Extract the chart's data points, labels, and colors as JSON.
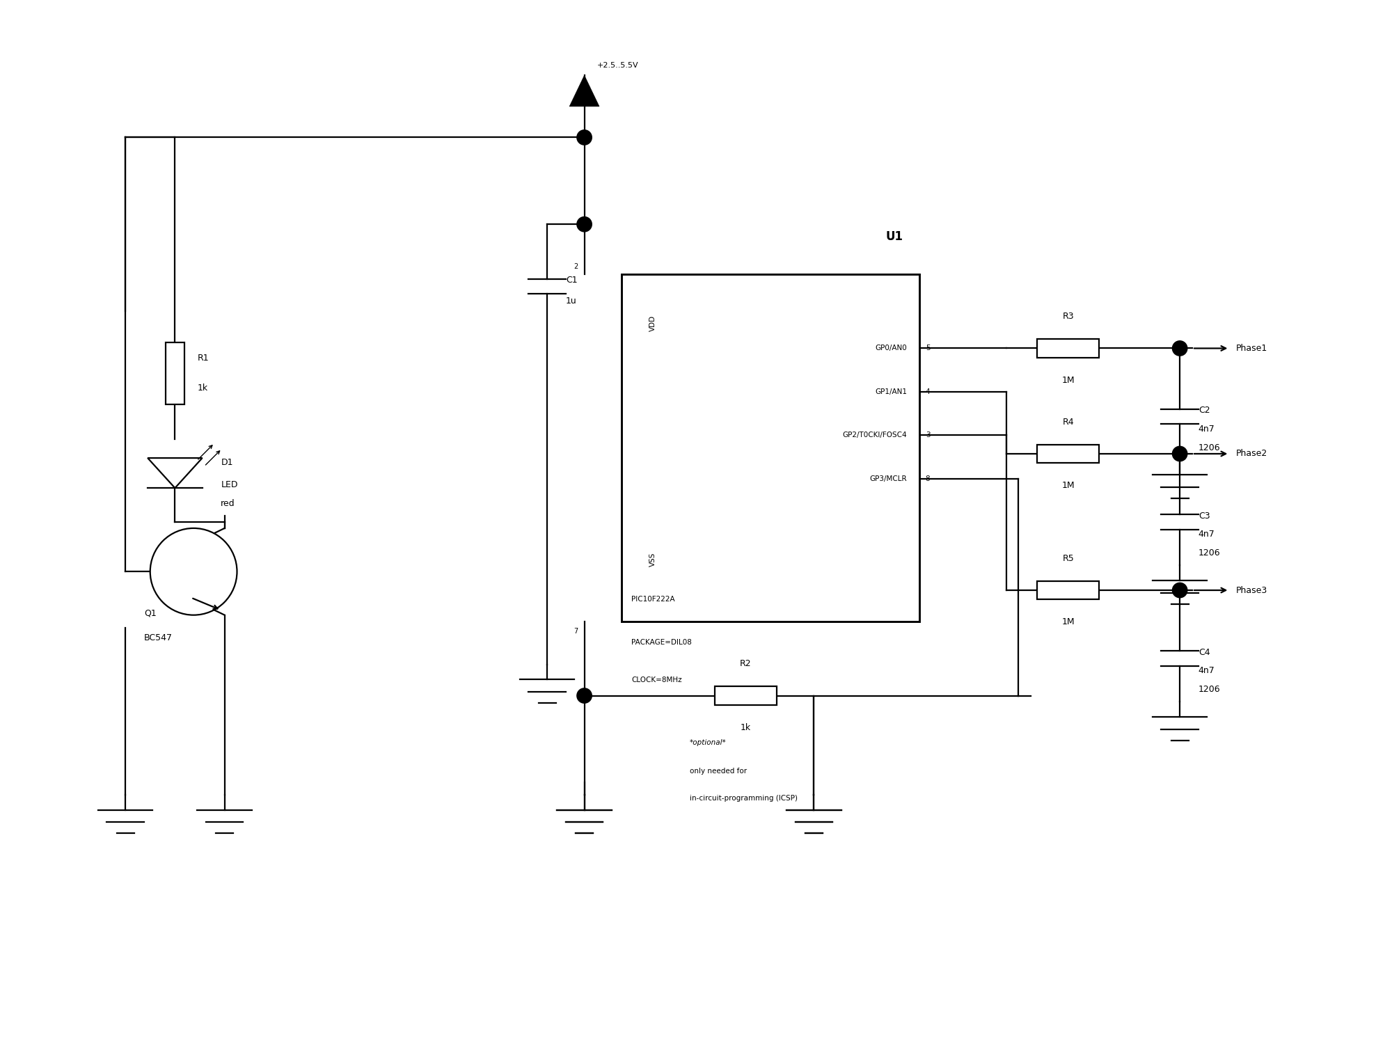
{
  "bg_color": "#ffffff",
  "lc": "#000000",
  "lw": 1.6,
  "fig_w": 20.0,
  "fig_h": 15.0,
  "vcc_label": "+2.5..5.5V",
  "chip_label": "U1",
  "chip_sub1": "PIC10F222A",
  "chip_sub2": "PACKAGE=DIL08",
  "chip_sub3": "CLOCK=8MHz",
  "chip_vdd": "VDD",
  "chip_vss": "VSS",
  "pin_labels": [
    "GP0/AN0",
    "GP1/AN1",
    "GP2/T0CKI/FOSC4",
    "GP3/MCLR"
  ],
  "pin_nums": [
    "5",
    "4",
    "3",
    "8"
  ],
  "r1_label": "R1",
  "r1_val": "1k",
  "r2_label": "R2",
  "r2_val": "1k",
  "r2_note1": "*optional*",
  "r2_note2": "only needed for",
  "r2_note3": "in-circuit-programming (ICSP)",
  "r3_label": "R3",
  "r3_val": "1M",
  "r4_label": "R4",
  "r4_val": "1M",
  "r5_label": "R5",
  "r5_val": "1M",
  "c1_label": "C1",
  "c1_val": "1u",
  "c2_label": "C2",
  "c2_v1": "4n7",
  "c2_v2": "1206",
  "c3_label": "C3",
  "c3_v1": "4n7",
  "c3_v2": "1206",
  "c4_label": "C4",
  "c4_v1": "4n7",
  "c4_v2": "1206",
  "d1_label": "D1",
  "d1_v1": "LED",
  "d1_v2": "red",
  "q1_label": "Q1",
  "q1_val": "BC547",
  "phase1": "Phase1",
  "phase2": "Phase2",
  "phase3": "Phase3",
  "pin2_num": "2",
  "pin7_num": "7"
}
